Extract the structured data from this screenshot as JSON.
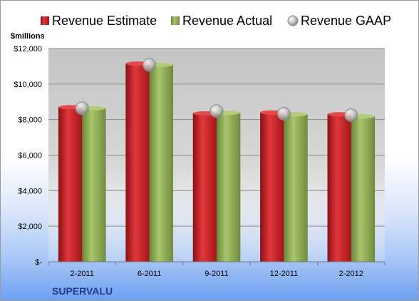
{
  "chart_data": {
    "type": "bar",
    "ylabel": "$millions",
    "categories": [
      "2-2011",
      "6-2011",
      "9-2011",
      "12-2011",
      "2-2012"
    ],
    "series": [
      {
        "name": "Revenue Estimate",
        "type": "bar",
        "color": "#c81e24",
        "values": [
          8700,
          11150,
          8350,
          8400,
          8300
        ]
      },
      {
        "name": "Revenue Actual",
        "type": "bar",
        "color": "#8fab55",
        "values": [
          8640,
          11080,
          8380,
          8300,
          8180
        ]
      },
      {
        "name": "Revenue GAAP",
        "type": "marker",
        "color": "#c8c8c8",
        "values": [
          8640,
          11080,
          8480,
          8330,
          8250
        ]
      }
    ],
    "ylim": [
      0,
      12000
    ],
    "yticks": [
      {
        "value": 0,
        "label": "$-"
      },
      {
        "value": 2000,
        "label": "$2,000"
      },
      {
        "value": 4000,
        "label": "$4,000"
      },
      {
        "value": 6000,
        "label": "$6,000"
      },
      {
        "value": 8000,
        "label": "$8,000"
      },
      {
        "value": 10000,
        "label": "$10,000"
      },
      {
        "value": 12000,
        "label": "$12,000"
      }
    ],
    "grid": true,
    "legend_position": "top",
    "company": "SUPERVALU"
  }
}
